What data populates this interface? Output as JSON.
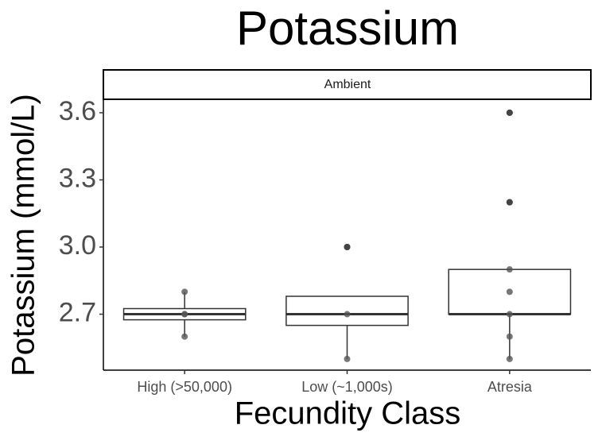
{
  "chart_data": {
    "type": "box",
    "title": "Potassium",
    "facet": "Ambient",
    "x_label": "Fecundity Class",
    "y_label": "Potassium (mmol/L)",
    "categories": [
      "High (>50,000)",
      "Low (~1,000s)",
      "Atresia"
    ],
    "boxes": [
      {
        "whislo": 2.6,
        "q1": 2.675,
        "med": 2.7,
        "q3": 2.725,
        "whishi": 2.8
      },
      {
        "whislo": 2.5,
        "q1": 2.65,
        "med": 2.7,
        "q3": 2.78,
        "whishi": 2.78
      },
      {
        "whislo": 2.5,
        "q1": 2.7,
        "med": 2.7,
        "q3": 2.9,
        "whishi": 2.9
      }
    ],
    "outliers": [
      [],
      [
        3.0
      ],
      [
        3.2,
        3.6
      ]
    ],
    "points": [
      [
        2.8,
        2.7,
        2.7,
        2.6
      ],
      [
        3.0,
        2.7,
        2.5
      ],
      [
        3.6,
        3.2,
        2.9,
        2.8,
        2.7,
        2.6,
        2.5
      ]
    ],
    "ylim": [
      2.45,
      3.66
    ],
    "yticks": [
      2.7,
      {
        "value": 3,
        "label": "3.0"
      },
      3.3,
      3.6
    ],
    "box_color": "#333333",
    "outlier_color": "#000000",
    "point_color": "#555555"
  }
}
